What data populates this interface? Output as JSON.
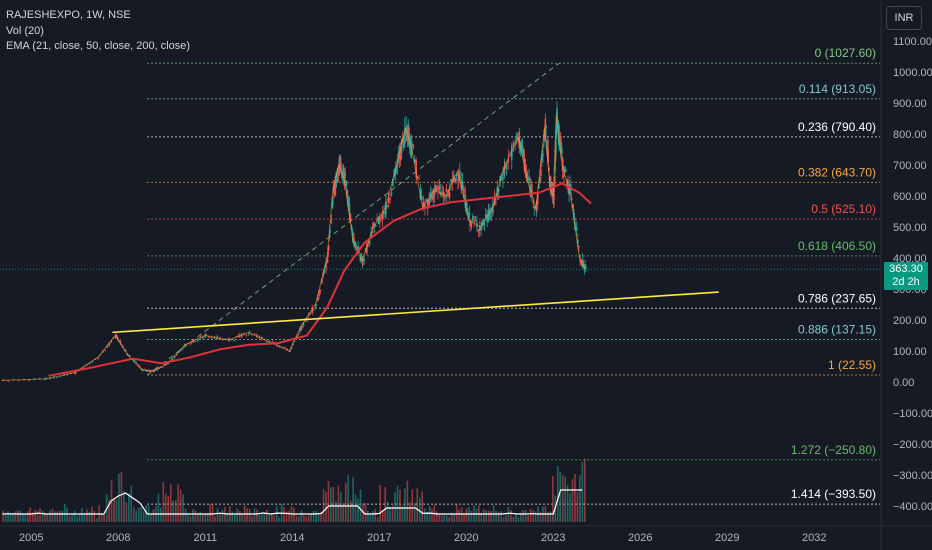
{
  "legend": {
    "symbol": "RAJESHEXPO, 1W, NSE",
    "volume": "Vol (20)",
    "ema": "EMA (21, close, 50, close, 200, close)"
  },
  "currency_button": "INR",
  "last_price": {
    "price": "363.30",
    "countdown": "2d 2h"
  },
  "colors": {
    "background": "#161a25",
    "up": "#26a69a",
    "down": "#ef5350",
    "ema_slow": "#e0323a",
    "trendline": "#ffeb3b",
    "grid_text": "#b2b5be"
  },
  "chart_data": {
    "type": "candlestick",
    "x_axis": {
      "tick_labels": [
        "2005",
        "2008",
        "2011",
        "2014",
        "2017",
        "2020",
        "2023",
        "2026",
        "2029",
        "2032"
      ]
    },
    "y_axis": {
      "tick_labels": [
        "1100.00",
        "1000.00",
        "900.00",
        "800.00",
        "700.00",
        "600.00",
        "500.00",
        "400.00",
        "300.00",
        "200.00",
        "100.00",
        "0.00",
        "−100.00",
        "−200.00",
        "−300.00",
        "−400.00"
      ],
      "range": [
        -440,
        1120
      ]
    },
    "fibonacci_levels": [
      {
        "label": "0 (1027.60)",
        "ratio": 0,
        "value": 1027.6,
        "color": "#81c784"
      },
      {
        "label": "0.114 (913.05)",
        "ratio": 0.114,
        "value": 913.05,
        "color": "#80cbc4"
      },
      {
        "label": "0.236 (790.40)",
        "ratio": 0.236,
        "value": 790.4,
        "color": "#ffffff"
      },
      {
        "label": "0.382 (643.70)",
        "ratio": 0.382,
        "value": 643.7,
        "color": "#f6a93b"
      },
      {
        "label": "0.5 (525.10)",
        "ratio": 0.5,
        "value": 525.1,
        "color": "#ef5350"
      },
      {
        "label": "0.618 (406.50)",
        "ratio": 0.618,
        "value": 406.5,
        "color": "#66bb6a"
      },
      {
        "label": "0.786 (237.65)",
        "ratio": 0.786,
        "value": 237.65,
        "color": "#ffffff"
      },
      {
        "label": "0.886 (137.15)",
        "ratio": 0.886,
        "value": 137.15,
        "color": "#80cbc4"
      },
      {
        "label": "1 (22.55)",
        "ratio": 1,
        "value": 22.55,
        "color": "#f6a93b"
      },
      {
        "label": "1.272 (−250.80)",
        "ratio": 1.272,
        "value": -250.8,
        "color": "#66bb6a"
      },
      {
        "label": "1.414 (−393.50)",
        "ratio": 1.414,
        "value": -393.5,
        "color": "#ffffff"
      }
    ],
    "price_series": {
      "x": [
        2004.0,
        2005.5,
        2006.5,
        2007.3,
        2007.9,
        2008.3,
        2008.8,
        2009.2,
        2009.7,
        2010.3,
        2011.0,
        2011.8,
        2012.5,
        2013.2,
        2013.9,
        2014.3,
        2014.8,
        2015.2,
        2015.4,
        2015.6,
        2015.8,
        2016.1,
        2016.4,
        2016.8,
        2017.2,
        2017.6,
        2017.9,
        2018.1,
        2018.5,
        2018.9,
        2019.3,
        2019.7,
        2020.1,
        2020.5,
        2020.9,
        2021.3,
        2021.8,
        2022.1,
        2022.4,
        2022.7,
        2022.9,
        2023.0,
        2023.1,
        2023.3,
        2023.6,
        2023.9,
        2024.1
      ],
      "close": [
        5,
        10,
        30,
        80,
        150,
        90,
        40,
        35,
        60,
        120,
        150,
        135,
        160,
        130,
        100,
        180,
        250,
        400,
        620,
        700,
        650,
        450,
        390,
        500,
        560,
        700,
        820,
        760,
        560,
        620,
        600,
        680,
        520,
        500,
        560,
        690,
        790,
        650,
        560,
        820,
        620,
        600,
        860,
        700,
        600,
        400,
        363.3
      ]
    },
    "ema_slow_series": {
      "x": [
        2005.6,
        2007.0,
        2008.5,
        2009.5,
        2010.5,
        2011.5,
        2012.5,
        2013.5,
        2014.5,
        2015.2,
        2015.8,
        2016.5,
        2017.5,
        2018.5,
        2019.5,
        2020.5,
        2021.5,
        2022.5,
        2023.3,
        2023.9,
        2024.3
      ],
      "value": [
        20,
        45,
        75,
        60,
        80,
        105,
        120,
        125,
        150,
        240,
        360,
        450,
        520,
        560,
        580,
        590,
        600,
        610,
        640,
        610,
        575
      ]
    },
    "trendline": {
      "x": [
        2007.8,
        2028.7
      ],
      "value": [
        160,
        290
      ]
    },
    "fib_anchor_line": {
      "x": [
        2009.0,
        2023.2
      ],
      "value": [
        22.55,
        1027.6
      ]
    },
    "volume": {
      "x_start": 2004.0,
      "x_end": 2024.1
    }
  }
}
